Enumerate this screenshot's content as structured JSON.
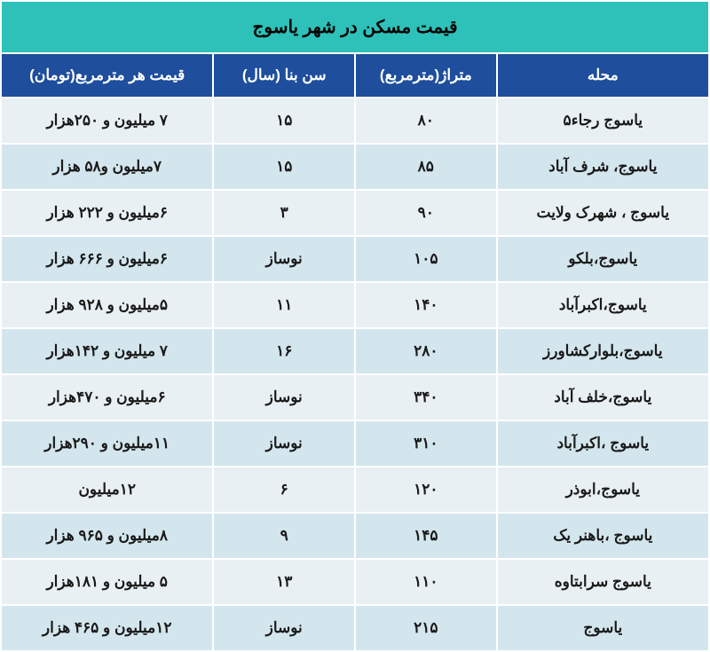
{
  "title": "قیمت مسکن در شهر یاسوج",
  "columns": [
    "محله",
    "متراژ(مترمربع)",
    "سن بنا (سال)",
    "قیمت هر مترمربع(تومان)"
  ],
  "rows": [
    {
      "neighborhood": "یاسوج رجاء۵",
      "area": "۸۰",
      "age": "۱۵",
      "price": "۷ میلیون و ۲۵۰هزار"
    },
    {
      "neighborhood": "یاسوج، شرف آباد",
      "area": "۸۵",
      "age": "۱۵",
      "price": "۷میلیون و۵۸ هزار"
    },
    {
      "neighborhood": "یاسوج ، شهرک ولایت",
      "area": "۹۰",
      "age": "۳",
      "price": "۶میلیون و ۲۲۲ هزار"
    },
    {
      "neighborhood": "یاسوج،بلکو",
      "area": "۱۰۵",
      "age": "نوساز",
      "price": "۶میلیون و ۶۶۶ هزار"
    },
    {
      "neighborhood": "یاسوج،اکبرآباد",
      "area": "۱۴۰",
      "age": "۱۱",
      "price": "۵میلیون و ۹۲۸ هزار"
    },
    {
      "neighborhood": "یاسوج،بلوارکشاورز",
      "area": "۲۸۰",
      "age": "۱۶",
      "price": "۷ میلیون و ۱۴۲هزار"
    },
    {
      "neighborhood": "یاسوج،خلف آباد",
      "area": "۳۴۰",
      "age": "نوساز",
      "price": "۶میلیون و ۴۷۰هزار"
    },
    {
      "neighborhood": "یاسوج ،اکبرآباد",
      "area": "۳۱۰",
      "age": "نوساز",
      "price": "۱۱میلیون و ۲۹۰هزار"
    },
    {
      "neighborhood": "یاسوج،ابوذر",
      "area": "۱۲۰",
      "age": "۶",
      "price": "۱۲میلیون"
    },
    {
      "neighborhood": "یاسوج ،باهنر یک",
      "area": "۱۴۵",
      "age": "۹",
      "price": "۸میلیون و ۹۶۵ هزار"
    },
    {
      "neighborhood": "یاسوج سرابتاوه",
      "area": "۱۱۰",
      "age": "۱۳",
      "price": "۵ میلیون و ۱۸۱هزار"
    },
    {
      "neighborhood": "یاسوج",
      "area": "۲۱۵",
      "age": "نوساز",
      "price": "۱۲میلیون و ۴۶۵ هزار"
    }
  ],
  "style": {
    "title_bg": "#2dc1b9",
    "header_bg": "#1e4e9c",
    "header_fg": "#ffffff",
    "row_even_bg": "#e9f0f3",
    "row_odd_bg": "#d4e6ed",
    "border_color": "#ffffff",
    "font_family": "Tahoma",
    "title_fontsize": 20,
    "header_fontsize": 17,
    "cell_fontsize": 17
  }
}
